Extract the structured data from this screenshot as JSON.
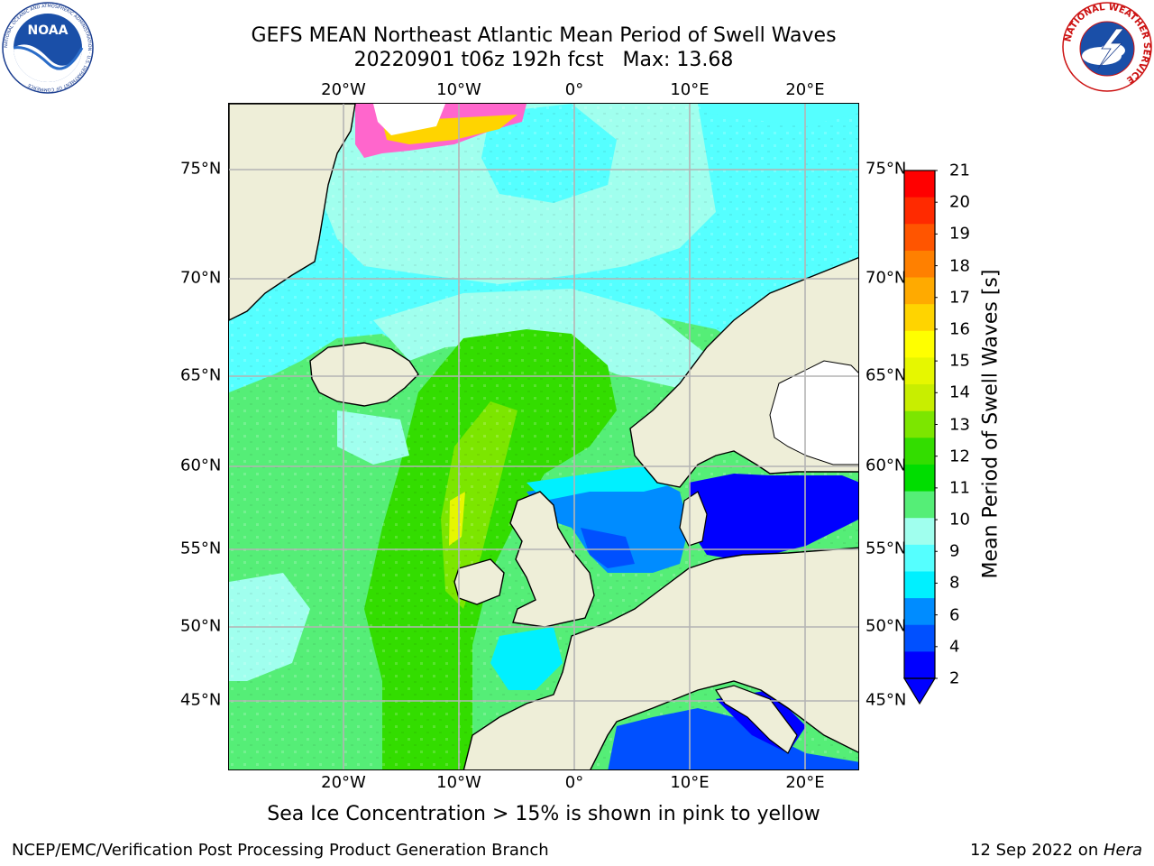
{
  "title": {
    "line1": "GEFS MEAN Northeast Atlantic Mean Period of Swell Waves",
    "line2": "20220901 t06z 192h fcst   Max: 13.68"
  },
  "logos": {
    "left": {
      "name": "noaa-logo",
      "text": "NOAA",
      "ring_text": "NATIONAL OCEANIC AND ATMOSPHERIC ADMINISTRATION · U.S. DEPARTMENT OF COMMERCE"
    },
    "right": {
      "name": "nws-logo",
      "ring_text": "NATIONAL WEATHER SERVICE"
    }
  },
  "map": {
    "lon_labels": [
      "20°W",
      "10°W",
      "0°",
      "10°E",
      "20°E"
    ],
    "lat_labels": [
      "75°N",
      "70°N",
      "65°N",
      "60°N",
      "55°N",
      "50°N",
      "45°N"
    ]
  },
  "colorbar": {
    "title": "Mean Period of Swell Waves [s]",
    "ticks": [
      "21",
      "20",
      "19",
      "18",
      "17",
      "16",
      "15",
      "14",
      "13",
      "12",
      "11",
      "10",
      "9",
      "8",
      "6",
      "4",
      "2"
    ],
    "colors": [
      "#ff0000",
      "#ff2a00",
      "#ff5500",
      "#ff8000",
      "#ffaa00",
      "#ffd400",
      "#ffff00",
      "#e6f700",
      "#c8ee00",
      "#7ce600",
      "#33dd00",
      "#00dd00",
      "#55ee77",
      "#a0ffee",
      "#55ffff",
      "#00f0ff",
      "#008cff",
      "#0050ff",
      "#0000ff"
    ]
  },
  "note": "Sea Ice Concentration > 15% is shown in pink to yellow",
  "footer": {
    "left": "NCEP/EMC/Verification Post Processing Product Generation Branch",
    "right_prefix": "12 Sep 2022 on ",
    "right_em": "Hera"
  }
}
